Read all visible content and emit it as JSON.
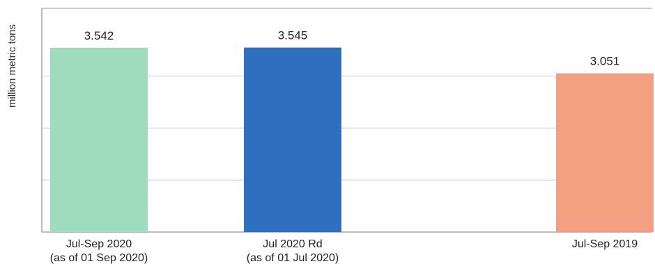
{
  "chart_data": {
    "type": "bar",
    "title": "",
    "xlabel": "",
    "ylabel": "million metric tons",
    "ylim": [
      0,
      4.3
    ],
    "grid": true,
    "categories": [
      [
        "Jul-Sep 2020",
        "(as of 01 Sep 2020)"
      ],
      [
        "Jul 2020 Rd",
        "(as of 01 Jul 2020)"
      ],
      [
        "Jul-Sep 2019"
      ]
    ],
    "values": [
      3.542,
      3.545,
      3.051
    ],
    "value_labels": [
      "3.542",
      "3.545",
      "3.051"
    ],
    "colors": [
      "#9fdcbd",
      "#2f6fc0",
      "#f3a082"
    ]
  }
}
